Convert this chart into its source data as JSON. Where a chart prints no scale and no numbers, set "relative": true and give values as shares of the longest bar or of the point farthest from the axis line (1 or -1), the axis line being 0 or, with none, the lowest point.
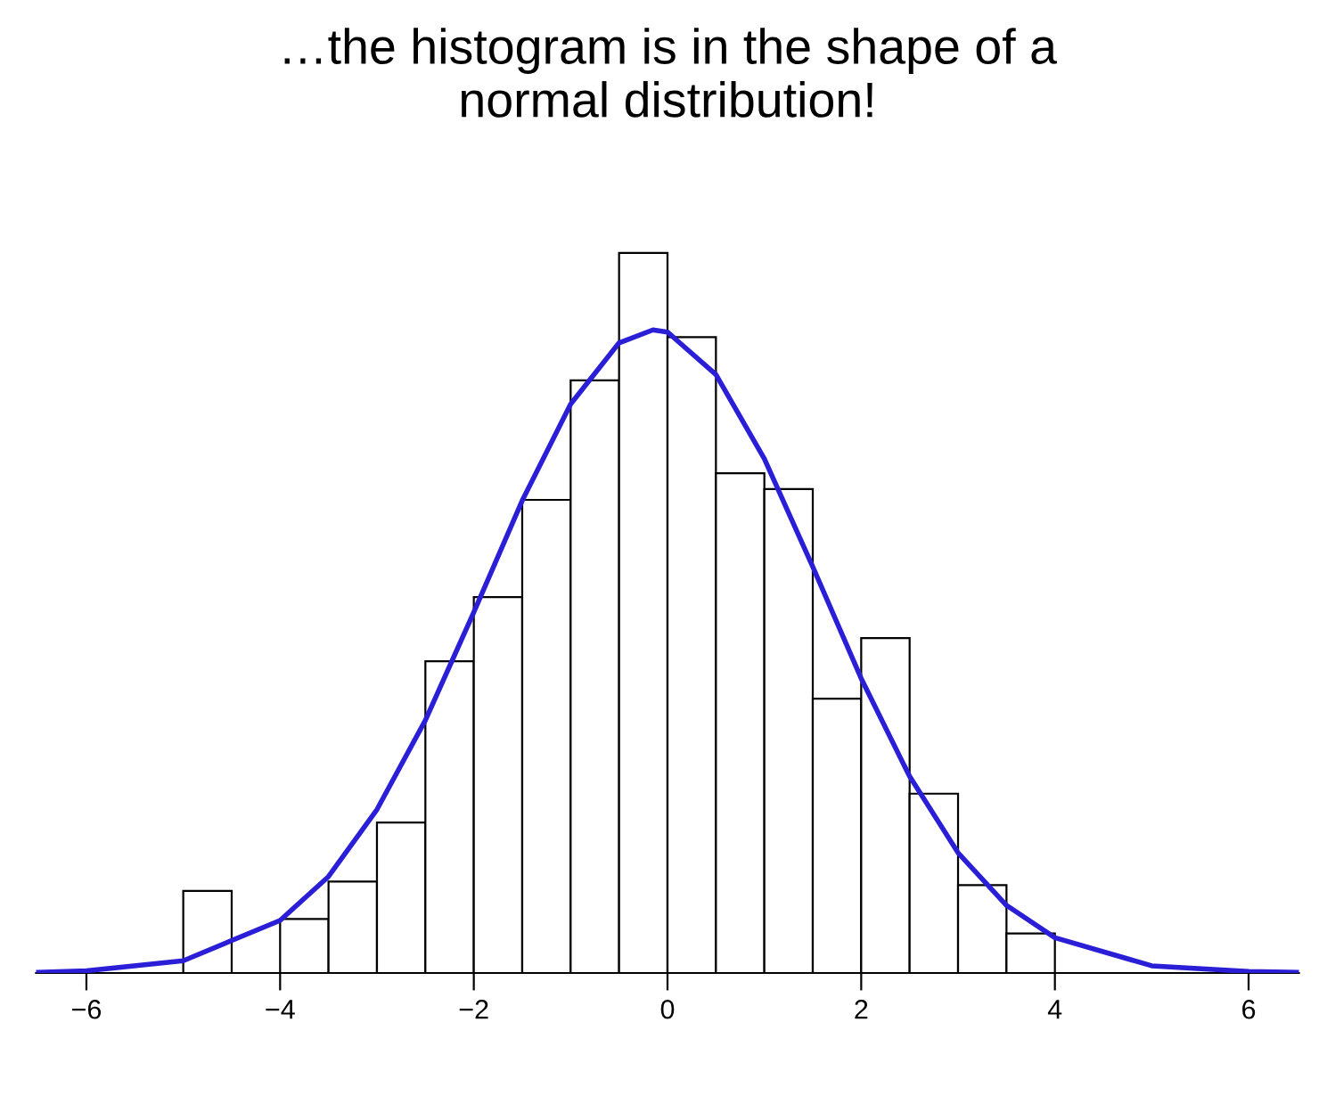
{
  "chart_data": {
    "type": "histogram",
    "title": "…the histogram is in the shape of a\nnormal distribution!",
    "relative": true,
    "xlim": [
      -6.52,
      6.52
    ],
    "xticks": [
      {
        "value": -6,
        "label": "−6"
      },
      {
        "value": -4,
        "label": "−4"
      },
      {
        "value": -2,
        "label": "−2"
      },
      0,
      2,
      4,
      6
    ],
    "grid": false,
    "legend": false,
    "series": [
      {
        "color": "#ffffff",
        "bins": [
          -5,
          -4.5,
          -4,
          -3.5,
          -3,
          -2.5,
          -2,
          -1.5,
          -1,
          -0.5,
          0,
          0.5,
          1,
          1.5,
          2,
          2.5,
          3,
          3.5,
          4
        ],
        "values": [
          0.114,
          0,
          0.075,
          0.127,
          0.209,
          0.433,
          0.522,
          0.657,
          0.823,
          1,
          0.883,
          0.694,
          0.672,
          0.381,
          0.465,
          0.249,
          0.122,
          0.055
        ]
      },
      {
        "type": "line",
        "color": "#2a1fd6",
        "x": [
          -6.5,
          -6,
          -5,
          -4,
          -3.5,
          -3,
          -2.5,
          -2,
          -1.5,
          -1,
          -0.5,
          -0.15,
          0,
          0.5,
          1,
          1.5,
          2,
          2.5,
          3,
          3.5,
          4,
          5,
          6,
          6.5
        ],
        "values": [
          0.001,
          0.003,
          0.017,
          0.073,
          0.134,
          0.227,
          0.351,
          0.501,
          0.656,
          0.79,
          0.875,
          0.893,
          0.89,
          0.831,
          0.714,
          0.564,
          0.409,
          0.273,
          0.167,
          0.094,
          0.049,
          0.01,
          0.002,
          0.001
        ]
      }
    ]
  }
}
